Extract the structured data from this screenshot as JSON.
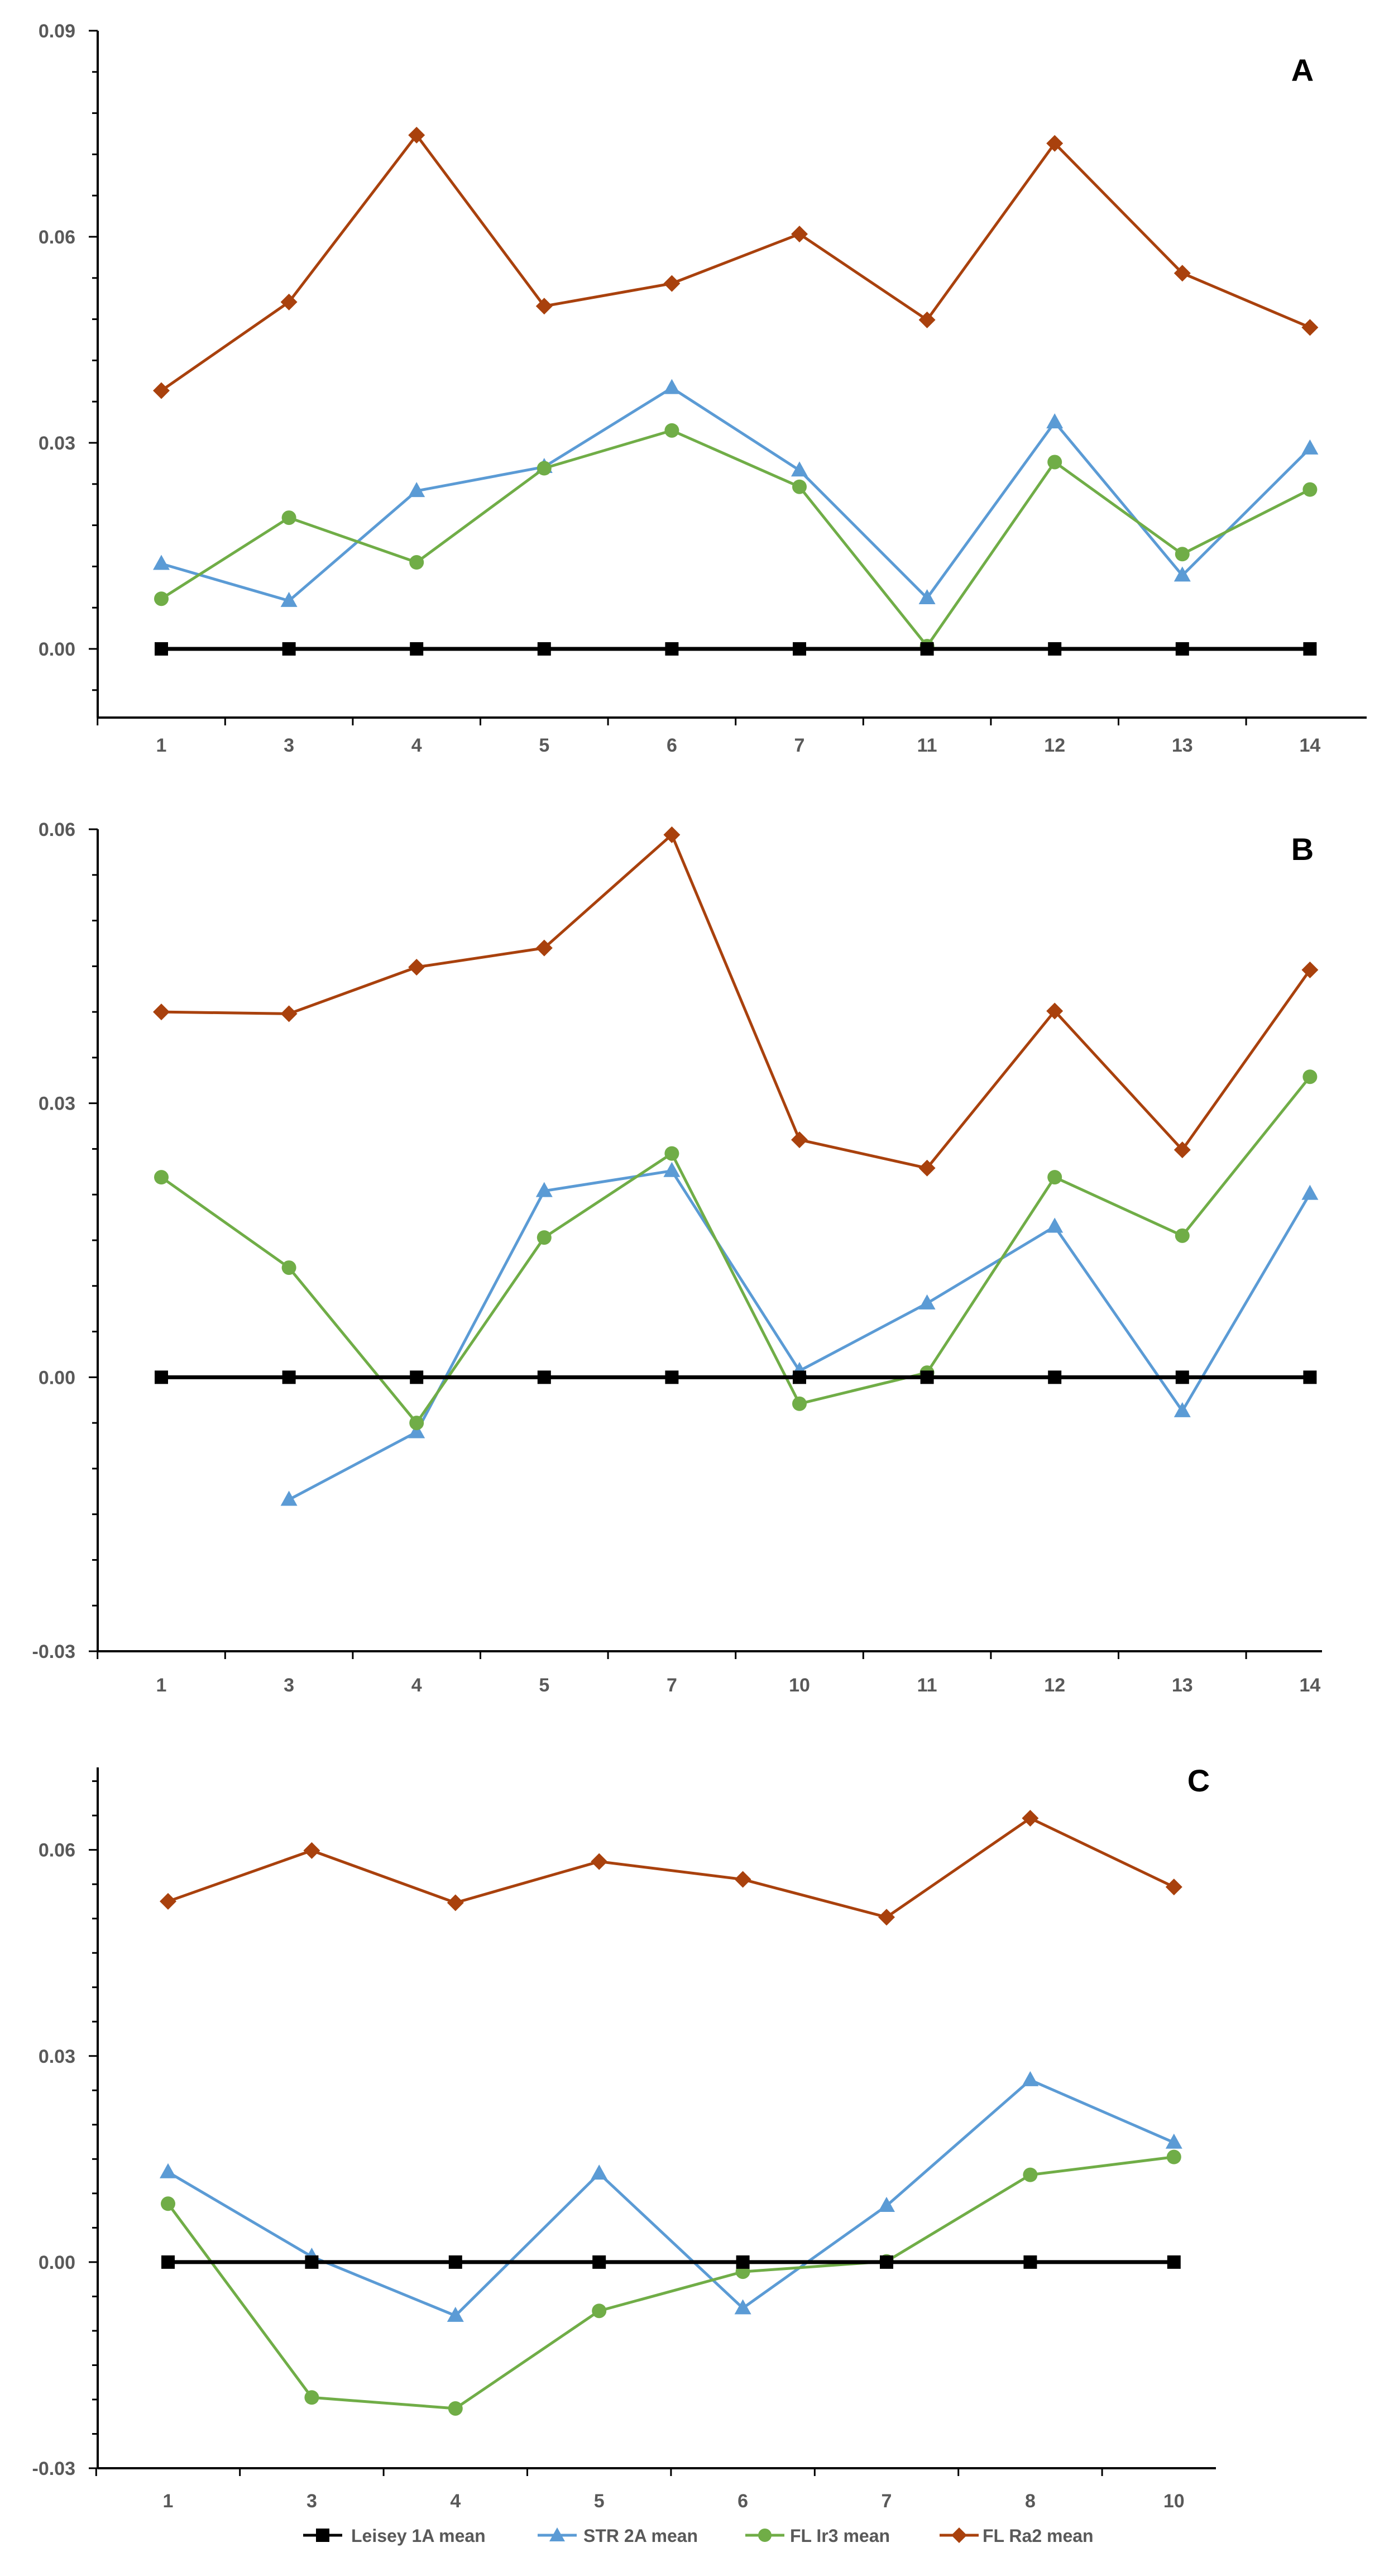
{
  "chart_data": [
    {
      "type": "line",
      "panel_label": "A",
      "categories": [
        "1",
        "3",
        "4",
        "5",
        "6",
        "7",
        "11",
        "12",
        "13",
        "14"
      ],
      "ylim": [
        -0.01,
        0.09
      ],
      "yticks": [
        "0.09",
        "0.06",
        "0.03",
        "0.00"
      ],
      "ytick_values": [
        0.09,
        0.06,
        0.03,
        0.0
      ],
      "series": [
        {
          "name": "Leisey 1A mean",
          "values": [
            0,
            0,
            0,
            0,
            0,
            0,
            0,
            0,
            0,
            0
          ]
        },
        {
          "name": "STR 2A mean",
          "values": [
            0.0124,
            0.007,
            0.023,
            0.0265,
            0.038,
            0.026,
            0.0074,
            0.033,
            0.0107,
            0.0292
          ]
        },
        {
          "name": "FL Ir3 mean",
          "values": [
            0.0073,
            0.0191,
            0.0126,
            0.0263,
            0.0318,
            0.0236,
            0.0004,
            0.0272,
            0.0138,
            0.0232
          ]
        },
        {
          "name": "FL Ra2 mean",
          "values": [
            0.0376,
            0.0505,
            0.0748,
            0.0499,
            0.0532,
            0.0604,
            0.0479,
            0.0736,
            0.0547,
            0.0468
          ]
        }
      ]
    },
    {
      "type": "line",
      "panel_label": "B",
      "categories": [
        "1",
        "3",
        "4",
        "5",
        "7",
        "10",
        "11",
        "12",
        "13",
        "14"
      ],
      "ylim": [
        -0.03,
        0.06
      ],
      "yticks": [
        "0.06",
        "0.03",
        "0.00",
        "-0.03"
      ],
      "ytick_values": [
        0.06,
        0.03,
        0.0,
        -0.03
      ],
      "series": [
        {
          "name": "Leisey 1A mean",
          "values": [
            0,
            0,
            0,
            0,
            0,
            0,
            0,
            0,
            0,
            0
          ]
        },
        {
          "name": "STR 2A mean",
          "values": [
            null,
            -0.0134,
            -0.006,
            0.0204,
            0.0226,
            0.0007,
            0.0081,
            0.0165,
            -0.0037,
            0.0201
          ]
        },
        {
          "name": "FL Ir3 mean",
          "values": [
            0.0219,
            0.012,
            -0.005,
            0.0153,
            0.0245,
            -0.0029,
            0.0005,
            0.0219,
            0.0155,
            0.0329
          ]
        },
        {
          "name": "FL Ra2 mean",
          "values": [
            0.04,
            0.0398,
            0.0449,
            0.047,
            0.0594,
            0.026,
            0.0229,
            0.0401,
            0.0249,
            0.0446
          ]
        }
      ]
    },
    {
      "type": "line",
      "panel_label": "C",
      "categories": [
        "1",
        "3",
        "4",
        "5",
        "6",
        "7",
        "8",
        "10"
      ],
      "ylim": [
        -0.03,
        0.072
      ],
      "yticks": [
        "0.06",
        "0.03",
        "0.00",
        "-0.03"
      ],
      "ytick_values": [
        0.06,
        0.03,
        0.0,
        -0.03
      ],
      "series": [
        {
          "name": "Leisey 1A mean",
          "values": [
            0,
            0,
            0,
            0,
            0,
            0,
            0,
            0
          ]
        },
        {
          "name": "STR 2A mean",
          "values": [
            0.0131,
            0.0008,
            -0.0078,
            0.0129,
            -0.0067,
            0.0082,
            0.0265,
            0.0174
          ]
        },
        {
          "name": "FL Ir3 mean",
          "values": [
            0.0085,
            -0.0197,
            -0.0213,
            -0.0071,
            -0.0014,
            0.0001,
            0.0127,
            0.0153
          ]
        },
        {
          "name": "FL Ra2 mean",
          "values": [
            0.0525,
            0.0599,
            0.0523,
            0.0583,
            0.0557,
            0.0502,
            0.0646,
            0.0546
          ]
        }
      ]
    }
  ],
  "legend": [
    {
      "name": "Leisey 1A mean",
      "color": "#000000",
      "marker": "square"
    },
    {
      "name": "STR 2A mean",
      "color": "#5b9bd5",
      "marker": "triangle"
    },
    {
      "name": "FL Ir3 mean",
      "color": "#70ad47",
      "marker": "circle"
    },
    {
      "name": "FL Ra2 mean",
      "color": "#a9410d",
      "marker": "diamond"
    }
  ]
}
